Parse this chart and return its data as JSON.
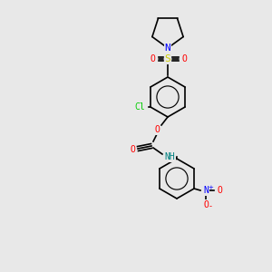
{
  "background_color": "#e8e8e8",
  "bond_color": "#000000",
  "atom_colors": {
    "N": "#0000ff",
    "O": "#ff0000",
    "S": "#cccc00",
    "Cl": "#00cc00",
    "NH": "#008080",
    "N+": "#0000ff",
    "O-": "#ff0000"
  },
  "font_size": 7,
  "line_width": 1.2
}
